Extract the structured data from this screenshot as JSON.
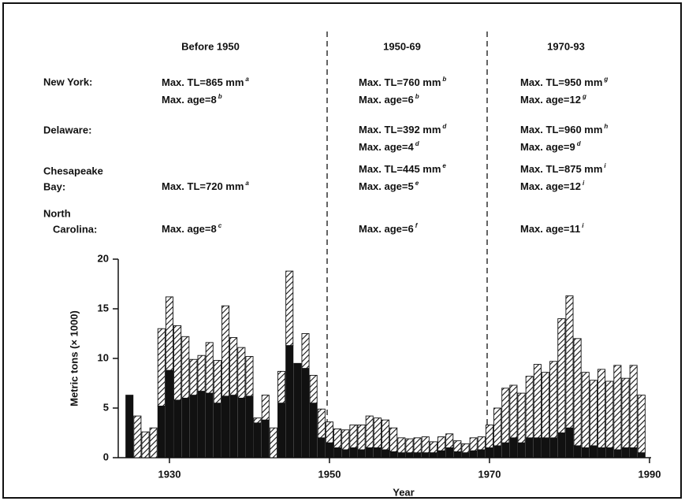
{
  "chart_data": {
    "type": "bar",
    "stacked": true,
    "xlabel": "Year",
    "ylabel": "Metric tons (× 1000)",
    "x": [
      1925,
      1926,
      1927,
      1928,
      1929,
      1930,
      1931,
      1932,
      1933,
      1934,
      1935,
      1936,
      1937,
      1938,
      1939,
      1940,
      1941,
      1942,
      1943,
      1944,
      1945,
      1946,
      1947,
      1948,
      1949,
      1950,
      1951,
      1952,
      1953,
      1954,
      1955,
      1956,
      1957,
      1958,
      1959,
      1960,
      1961,
      1962,
      1963,
      1964,
      1965,
      1966,
      1967,
      1968,
      1969,
      1970,
      1971,
      1972,
      1973,
      1974,
      1975,
      1976,
      1977,
      1978,
      1979,
      1980,
      1981,
      1982,
      1983,
      1984,
      1985,
      1986,
      1987,
      1988,
      1989
    ],
    "series": [
      {
        "color": "#111111",
        "hatched": false,
        "values": [
          6.3,
          0,
          0,
          0,
          5.2,
          8.8,
          5.8,
          6.0,
          6.3,
          6.7,
          6.5,
          5.5,
          6.2,
          6.3,
          6.0,
          6.2,
          3.5,
          3.8,
          0,
          5.5,
          11.3,
          9.5,
          9.0,
          5.5,
          2.0,
          1.5,
          1.0,
          0.8,
          1.0,
          0.8,
          1.0,
          1.0,
          0.8,
          0.6,
          0.5,
          0.5,
          0.5,
          0.5,
          0.5,
          0.7,
          1.0,
          0.6,
          0.5,
          0.7,
          0.8,
          1.0,
          1.2,
          1.5,
          2.0,
          1.5,
          2.0,
          2.0,
          2.0,
          2.0,
          2.5,
          3.0,
          1.2,
          1.0,
          1.2,
          1.0,
          1.0,
          0.8,
          1.0,
          1.0,
          0.5
        ]
      },
      {
        "color": "#111111",
        "hatched": true,
        "values": [
          0,
          4.2,
          2.6,
          3.0,
          7.8,
          7.4,
          7.5,
          6.2,
          3.6,
          3.6,
          5.1,
          4.3,
          9.1,
          5.8,
          5.1,
          4.0,
          0.5,
          2.5,
          3.0,
          3.2,
          7.5,
          0,
          3.5,
          2.8,
          2.9,
          2.1,
          1.9,
          2.0,
          2.3,
          2.5,
          3.2,
          3.0,
          3.0,
          2.4,
          1.5,
          1.4,
          1.5,
          1.6,
          1.1,
          1.4,
          1.4,
          1.1,
          0.9,
          1.3,
          1.3,
          2.3,
          3.8,
          5.5,
          5.3,
          5.0,
          6.2,
          7.4,
          6.6,
          7.7,
          11.5,
          13.3,
          10.8,
          7.6,
          6.6,
          7.9,
          6.7,
          8.5,
          7.0,
          8.3,
          5.8
        ]
      }
    ],
    "xlim": [
      1923.6,
      1990.2
    ],
    "xticks": [
      1930,
      1950,
      1970,
      1990
    ],
    "ylim": [
      0,
      20
    ],
    "yticks": [
      0,
      5,
      10,
      15,
      20
    ],
    "periods": [
      "Before 1950",
      "1950-69",
      "1970-93"
    ],
    "rows": [
      {
        "region": [
          "New York:"
        ],
        "cells": [
          [
            {
              "text": "Max. TL=865 mm",
              "sup": "a"
            },
            {
              "text": "Max. age=8",
              "sup": "b"
            }
          ],
          [
            {
              "text": "Max. TL=760 mm",
              "sup": "b"
            },
            {
              "text": "Max. age=6",
              "sup": "b"
            }
          ],
          [
            {
              "text": "Max. TL=950 mm",
              "sup": "g"
            },
            {
              "text": "Max. age=12",
              "sup": "g"
            }
          ]
        ]
      },
      {
        "region": [
          "Delaware:"
        ],
        "cells": [
          [],
          [
            {
              "text": "Max. TL=392 mm",
              "sup": "d"
            },
            {
              "text": "Max. age=4",
              "sup": "d"
            }
          ],
          [
            {
              "text": "Max. TL=960 mm",
              "sup": "h"
            },
            {
              "text": "Max. age=9",
              "sup": "d"
            }
          ]
        ]
      },
      {
        "region": [
          "Chesapeake",
          "Bay:"
        ],
        "cells": [
          [
            {
              "text": "Max. TL=720 mm",
              "sup": "a"
            }
          ],
          [
            {
              "text": "Max. TL=445 mm",
              "sup": "e"
            },
            {
              "text": "Max. age=5",
              "sup": "e"
            }
          ],
          [
            {
              "text": "Max. TL=875 mm",
              "sup": "i"
            },
            {
              "text": "Max. age=12",
              "sup": "i"
            }
          ]
        ]
      },
      {
        "region": [
          "North",
          "Carolina:"
        ],
        "cells": [
          [
            {
              "text": "Max. age=8",
              "sup": "c"
            }
          ],
          [
            {
              "text": "Max. age=6",
              "sup": "f"
            }
          ],
          [
            {
              "text": "Max. age=11",
              "sup": "i"
            }
          ]
        ]
      }
    ]
  }
}
